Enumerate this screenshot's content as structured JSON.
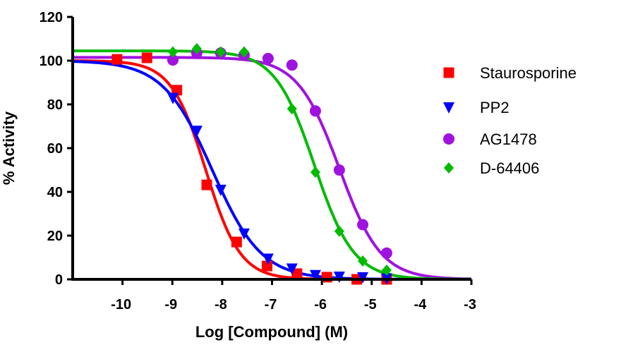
{
  "chart_data": {
    "type": "scatter",
    "title": "",
    "xlabel": "Log [Compound] (M)",
    "ylabel": "% Activity",
    "xlim": [
      -11,
      -3
    ],
    "ylim": [
      0,
      120
    ],
    "xticks": [
      -10,
      -9,
      -8,
      -7,
      -6,
      -5,
      -4,
      -3
    ],
    "yticks": [
      0,
      20,
      40,
      60,
      80,
      100,
      120
    ],
    "grid": false,
    "legend_position": "right",
    "series": [
      {
        "name": "Staurosporine",
        "color": "#ff0000",
        "marker": "square",
        "x": [
          -10.11,
          -9.51,
          -8.91,
          -8.31,
          -7.71,
          -7.1,
          -6.5,
          -5.9,
          -5.3,
          -4.7
        ],
        "y": [
          100.6,
          101.3,
          86.5,
          43.2,
          17.1,
          6.1,
          2.6,
          1.0,
          0.0,
          0.0
        ],
        "fit": {
          "top": 100,
          "bottom": 0,
          "log_ic50": -8.33,
          "hill": 1.25
        }
      },
      {
        "name": "PP2",
        "color": "#0000ff",
        "marker": "triangle-down",
        "x": [
          -8.99,
          -8.51,
          -8.03,
          -7.56,
          -7.08,
          -6.6,
          -6.13,
          -5.65,
          -5.18,
          -4.7
        ],
        "y": [
          83,
          68,
          41,
          21,
          9.5,
          5,
          2,
          1.3,
          1,
          0.5
        ],
        "fit": {
          "top": 100,
          "bottom": 0,
          "log_ic50": -8.2,
          "hill": 0.88
        }
      },
      {
        "name": "AG1478",
        "color": "#a012e0",
        "marker": "circle",
        "x": [
          -8.99,
          -8.51,
          -8.03,
          -7.56,
          -7.08,
          -6.6,
          -6.13,
          -5.65,
          -5.18,
          -4.7
        ],
        "y": [
          100.3,
          103.5,
          103.5,
          102.6,
          101,
          98,
          77,
          50,
          25,
          12
        ],
        "fit": {
          "top": 101.5,
          "bottom": 0,
          "log_ic50": -5.65,
          "hill": 1.04
        }
      },
      {
        "name": "D-64406",
        "color": "#00bb00",
        "marker": "diamond",
        "x": [
          -8.99,
          -8.51,
          -8.03,
          -7.56,
          -6.6,
          -6.13,
          -5.65,
          -5.18,
          -4.7
        ],
        "y": [
          104,
          105.5,
          104,
          104,
          78,
          49,
          22,
          8.4,
          4.2
        ],
        "fit": {
          "top": 104.5,
          "bottom": 0,
          "log_ic50": -6.15,
          "hill": 1.1
        }
      }
    ]
  }
}
